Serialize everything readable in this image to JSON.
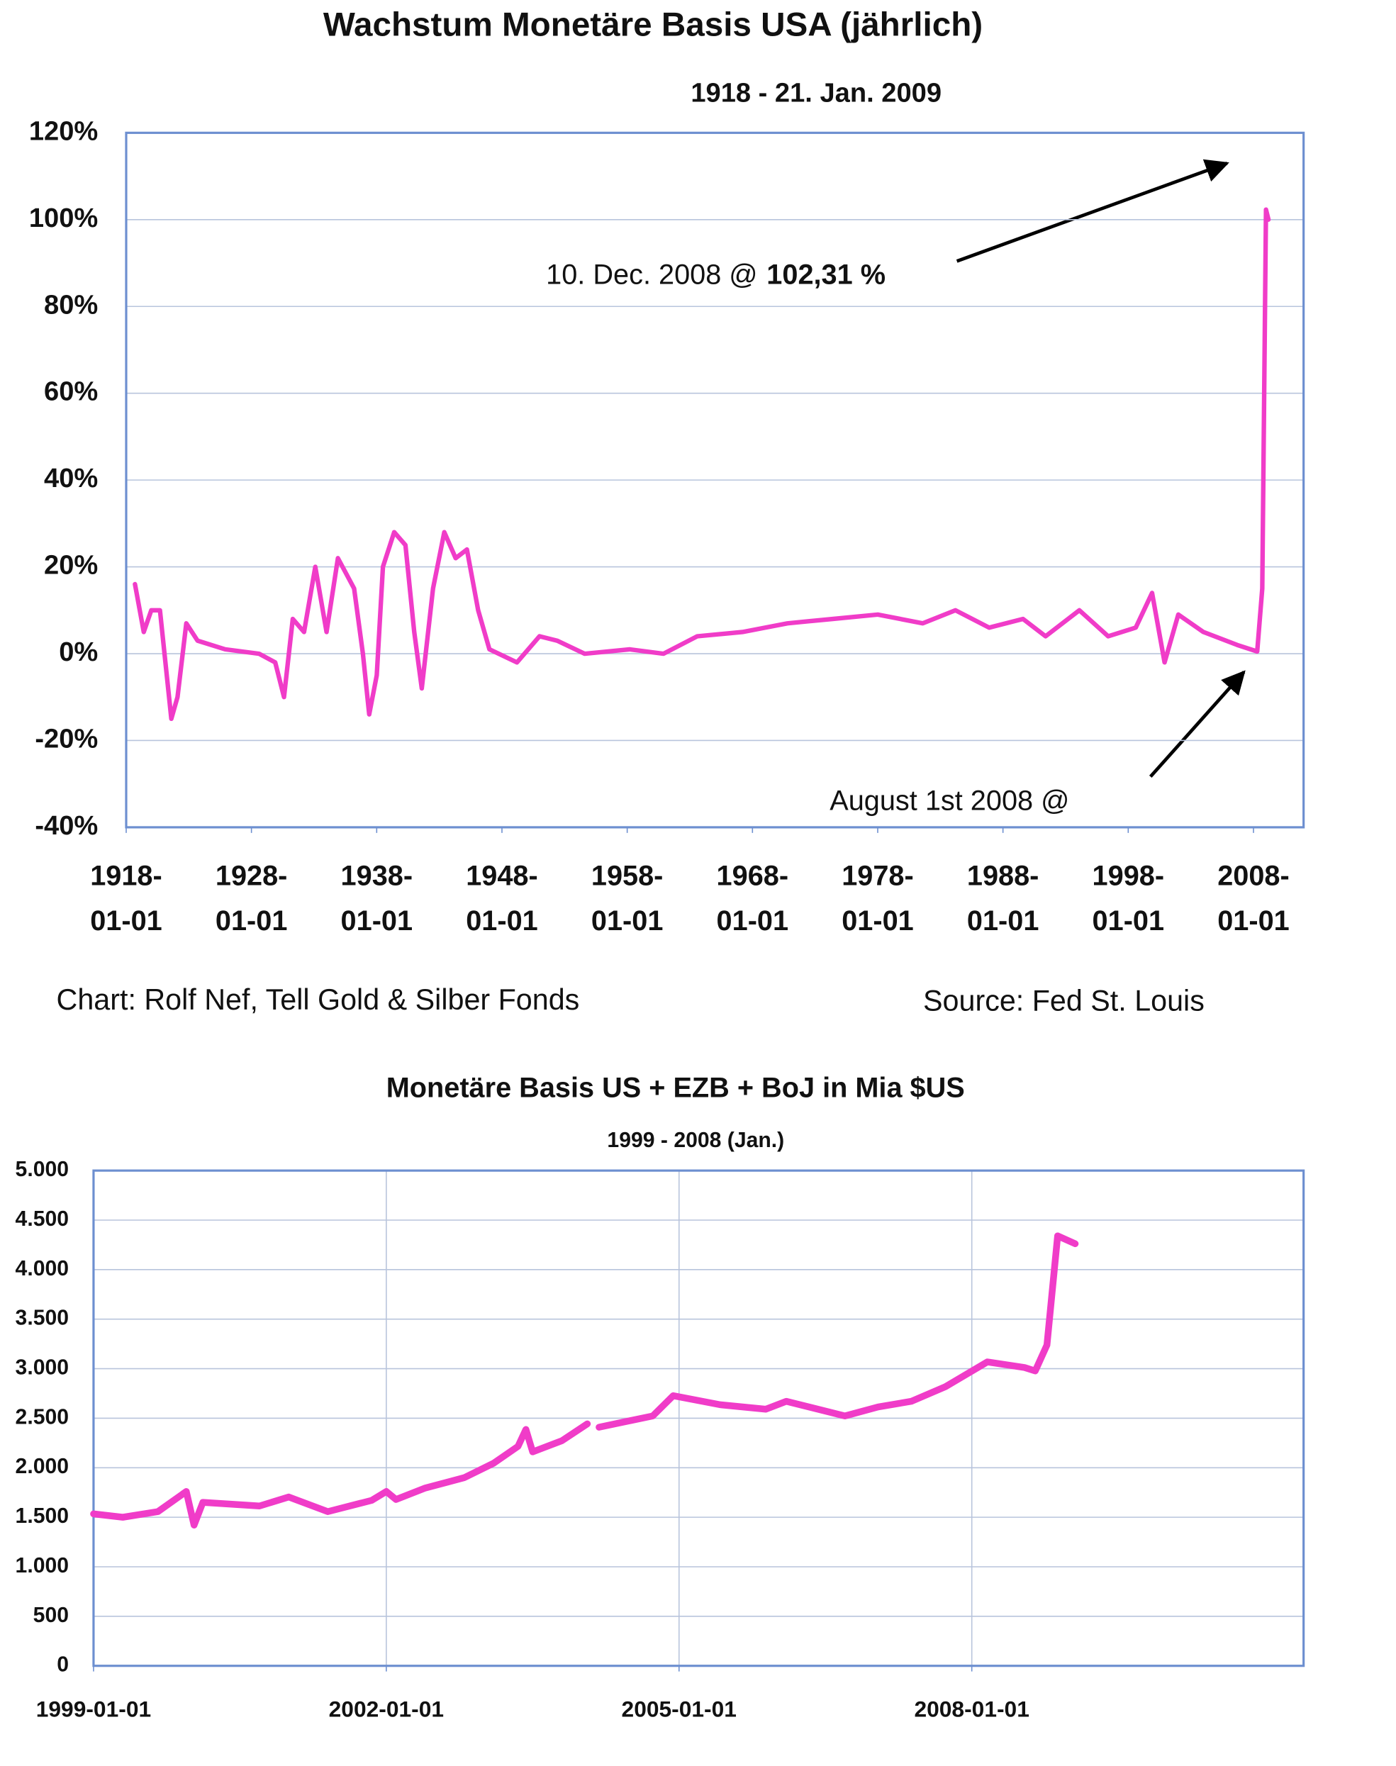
{
  "chart_data": [
    {
      "type": "line",
      "title": "Wachstum Monetäre Basis USA (jährlich)",
      "subtitle": "1918 -  21. Jan. 2009",
      "x": [
        1918.7,
        1919.4,
        1920,
        1920.7,
        1921.6,
        1922.1,
        1922.8,
        1923.7,
        1925.9,
        1928.6,
        1929.9,
        1930.6,
        1931.3,
        1932.2,
        1933.1,
        1934,
        1934.9,
        1936.2,
        1936.9,
        1937.4,
        1938,
        1938.5,
        1939.4,
        1940.3,
        1941,
        1941.6,
        1942.5,
        1943.4,
        1944.3,
        1945.2,
        1946.1,
        1947,
        1949.2,
        1951,
        1952.4,
        1954.6,
        1958.2,
        1960.9,
        1963.6,
        1967.2,
        1970.8,
        1974.4,
        1978,
        1981.6,
        1984.2,
        1986.9,
        1989.6,
        1991.4,
        1994.1,
        1996.4,
        1998.6,
        1999.9,
        2000.9,
        2002,
        2004,
        2006.7,
        2008.3,
        2008.7,
        2009.0,
        2009.2
      ],
      "series": [
        {
          "name": "Wachstum",
          "color": "#f03cc8",
          "values": [
            16,
            5,
            10,
            10,
            -15,
            -10,
            7,
            3,
            1,
            0,
            -2,
            -10,
            8,
            5,
            20,
            5,
            22,
            15,
            0,
            -14,
            -5,
            20,
            28,
            25,
            5,
            -8,
            15,
            28,
            22,
            24,
            10,
            1,
            -2,
            4,
            3,
            0,
            1,
            0,
            4,
            5,
            7,
            8,
            9,
            7,
            10,
            6,
            8,
            4,
            10,
            4,
            6,
            14,
            -2,
            9,
            5,
            2,
            0.5,
            15,
            102.31,
            100
          ]
        }
      ],
      "xlim": [
        1918,
        2012
      ],
      "xticks": [
        {
          "value": 1918,
          "label": "1918-01-01"
        },
        {
          "value": 1928,
          "label": "1928-01-01"
        },
        {
          "value": 1938,
          "label": "1938-01-01"
        },
        {
          "value": 1948,
          "label": "1948-01-01"
        },
        {
          "value": 1958,
          "label": "1958-01-01"
        },
        {
          "value": 1968,
          "label": "1968-01-01"
        },
        {
          "value": 1978,
          "label": "1978-01-01"
        },
        {
          "value": 1988,
          "label": "1988-01-01"
        },
        {
          "value": 1998,
          "label": "1998-01-01"
        },
        {
          "value": 2008,
          "label": "2008-01-01"
        }
      ],
      "ylim": [
        -40,
        120
      ],
      "yticks": [
        {
          "value": -40,
          "label": "-40%"
        },
        {
          "value": -20,
          "label": "-20%"
        },
        {
          "value": 0,
          "label": "0%"
        },
        {
          "value": 20,
          "label": "20%"
        },
        {
          "value": 40,
          "label": "40%"
        },
        {
          "value": 60,
          "label": "60%"
        },
        {
          "value": 80,
          "label": "80%"
        },
        {
          "value": 100,
          "label": "100%"
        },
        {
          "value": 120,
          "label": "120%"
        }
      ],
      "grid": true,
      "annotations": [
        "10. Dec. 2008 @",
        "102,31 %",
        "August  1st 2008 @"
      ],
      "credit": "Chart: Rolf Nef, Tell Gold & Silber Fonds",
      "source": "Source: Fed St. Louis"
    },
    {
      "type": "line",
      "title": "Monetäre Basis US + EZB + BoJ in Mia $US",
      "subtitle": "1999 - 2008 (Jan.)",
      "x": [
        1999,
        1999.3,
        1999.66,
        1999.95,
        2000.03,
        2000.12,
        2000.7,
        2001,
        2001.4,
        2001.85,
        2002,
        2002.1,
        2002.4,
        2002.8,
        2003.1,
        2003.35,
        2003.43,
        2003.5,
        2003.8,
        2004.06,
        2004.12,
        2004.18,
        2004.73,
        2004.94,
        2005.42,
        2005.89,
        2006.1,
        2006.7,
        2007.04,
        2007.38,
        2007.73,
        2008.16,
        2008.54,
        2008.65,
        2008.77,
        2008.88,
        2009.06
      ],
      "series": [
        {
          "name": "Monetäre Basis",
          "color": "#f03cc8",
          "values": [
            1534,
            1500,
            1557,
            1760,
            1420,
            1650,
            1614,
            1705,
            1557,
            1670,
            1760,
            1680,
            1795,
            1900,
            2045,
            2216,
            2386,
            2160,
            2273,
            2443,
            null,
            2409,
            2523,
            2727,
            2636,
            2591,
            2670,
            2523,
            2614,
            2670,
            2818,
            3068,
            3011,
            2977,
            3239,
            4341,
            4261
          ]
        }
      ],
      "xlim": [
        1999,
        2011.4
      ],
      "xticks": [
        {
          "value": 1999,
          "label": "1999-01-01"
        },
        {
          "value": 2002,
          "label": "2002-01-01"
        },
        {
          "value": 2005,
          "label": "2005-01-01"
        },
        {
          "value": 2008,
          "label": "2008-01-01"
        }
      ],
      "ylim": [
        0,
        5000
      ],
      "yticks": [
        0,
        500,
        {
          "value": 1000,
          "label": "1.000"
        },
        {
          "value": 1500,
          "label": "1.500"
        },
        {
          "value": 2000,
          "label": "2.000"
        },
        {
          "value": 2500,
          "label": "2.500"
        },
        {
          "value": 3000,
          "label": "3.000"
        },
        {
          "value": 3500,
          "label": "3.500"
        },
        {
          "value": 4000,
          "label": "4.000"
        },
        {
          "value": 4500,
          "label": "4.500"
        },
        {
          "value": 5000,
          "label": "5.000"
        }
      ],
      "grid": true
    }
  ]
}
